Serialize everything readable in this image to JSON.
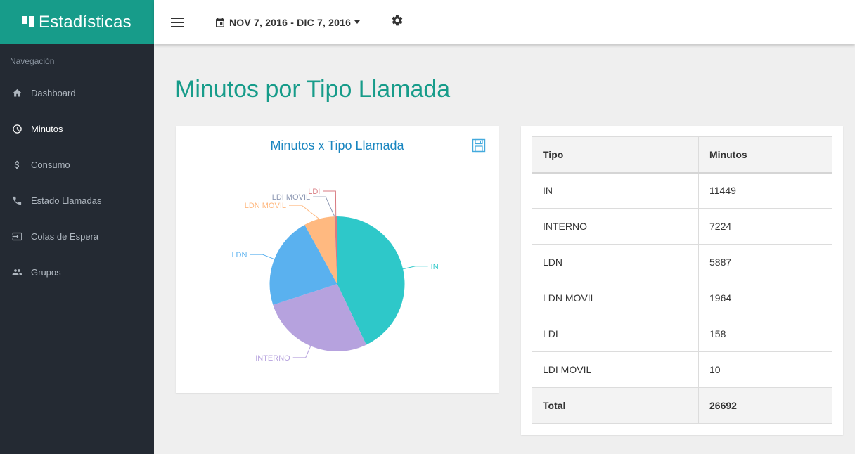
{
  "app": {
    "title": "Estadísticas"
  },
  "nav": {
    "heading": "Navegación",
    "items": [
      {
        "label": "Dashboard",
        "icon": "home-icon",
        "active": false
      },
      {
        "label": "Minutos",
        "icon": "clock-icon",
        "active": true
      },
      {
        "label": "Consumo",
        "icon": "dollar-icon",
        "active": false
      },
      {
        "label": "Estado Llamadas",
        "icon": "phone-icon",
        "active": false
      },
      {
        "label": "Colas de Espera",
        "icon": "queue-icon",
        "active": false
      },
      {
        "label": "Grupos",
        "icon": "group-icon",
        "active": false
      }
    ]
  },
  "topbar": {
    "date_range": "NOV 7, 2016 - DIC 7, 2016"
  },
  "page": {
    "title": "Minutos por Tipo Llamada"
  },
  "chart_data": {
    "type": "pie",
    "title": "Minutos x Tipo Llamada",
    "slices": [
      {
        "label": "IN",
        "value": 11449,
        "color": "#2ec8c9"
      },
      {
        "label": "INTERNO",
        "value": 7224,
        "color": "#b6a2de"
      },
      {
        "label": "LDN",
        "value": 5887,
        "color": "#5ab1ef"
      },
      {
        "label": "LDN MOVIL",
        "value": 1964,
        "color": "#ffb980"
      },
      {
        "label": "LDI MOVIL",
        "value": 10,
        "color": "#8d98b3"
      },
      {
        "label": "LDI",
        "value": 158,
        "color": "#d87a80"
      }
    ]
  },
  "table": {
    "headers": [
      "Tipo",
      "Minutos"
    ],
    "rows": [
      [
        "IN",
        "11449"
      ],
      [
        "INTERNO",
        "7224"
      ],
      [
        "LDN",
        "5887"
      ],
      [
        "LDN MOVIL",
        "1964"
      ],
      [
        "LDI",
        "158"
      ],
      [
        "LDI MOVIL",
        "10"
      ]
    ],
    "total": [
      "Total",
      "26692"
    ]
  }
}
